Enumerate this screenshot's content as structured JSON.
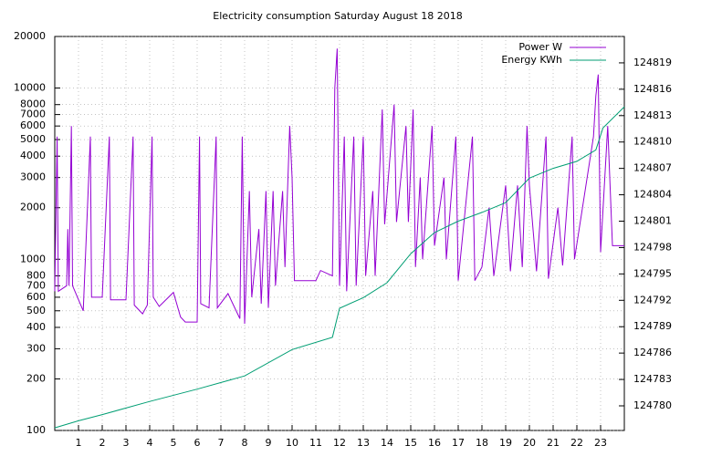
{
  "chart_data": {
    "type": "line",
    "title": "Electricity consumption Saturday August 18 2018",
    "xlim": [
      0,
      24
    ],
    "xticks": [
      1,
      2,
      3,
      4,
      5,
      6,
      7,
      8,
      9,
      10,
      11,
      12,
      13,
      14,
      15,
      16,
      17,
      18,
      19,
      20,
      21,
      22,
      23
    ],
    "ylim": [
      100,
      20000
    ],
    "yticks": [
      100,
      200,
      300,
      400,
      500,
      600,
      700,
      800,
      1000,
      2000,
      3000,
      4000,
      5000,
      6000,
      7000,
      8000,
      10000,
      20000
    ],
    "ylog": true,
    "y2lim": [
      124777.2,
      124822
    ],
    "y2ticks": [
      124780,
      124783,
      124786,
      124789,
      124792,
      124795,
      124798,
      124801,
      124804,
      124807,
      124810,
      124813,
      124816,
      124819
    ],
    "grid": true,
    "legend": "top-right",
    "series": [
      {
        "name": "Power W",
        "color": "#9400d3",
        "x": [
          0,
          0.1,
          0.15,
          0.5,
          0.55,
          0.6,
          0.7,
          0.75,
          1.2,
          1.5,
          1.55,
          2,
          2.3,
          2.35,
          3,
          3.3,
          3.35,
          3.7,
          3.9,
          4.1,
          4.15,
          4.4,
          5,
          5.3,
          5.5,
          6,
          6.1,
          6.15,
          6.5,
          6.8,
          6.85,
          7.3,
          7.8,
          7.9,
          8,
          8.1,
          8.2,
          8.3,
          8.6,
          8.7,
          8.9,
          9,
          9.2,
          9.3,
          9.6,
          9.7,
          9.9,
          10,
          10.1,
          10.5,
          11,
          11.2,
          11.7,
          11.8,
          11.9,
          12,
          12.2,
          12.3,
          12.6,
          12.7,
          13,
          13.1,
          13.4,
          13.5,
          13.8,
          13.9,
          14.3,
          14.4,
          14.8,
          14.9,
          15.1,
          15.2,
          15.4,
          15.5,
          15.9,
          16,
          16.4,
          16.5,
          16.9,
          17,
          17.6,
          17.7,
          18,
          18.3,
          18.5,
          19,
          19.2,
          19.5,
          19.7,
          19.9,
          20,
          20.3,
          20.7,
          20.8,
          21.2,
          21.4,
          21.8,
          21.9,
          22.7,
          22.8,
          22.9,
          23,
          23.3,
          23.5,
          24
        ],
        "values": [
          650,
          5200,
          650,
          700,
          1500,
          700,
          6000,
          700,
          500,
          5200,
          600,
          600,
          5200,
          580,
          580,
          5200,
          540,
          480,
          540,
          5200,
          600,
          530,
          640,
          460,
          430,
          430,
          5200,
          550,
          520,
          5200,
          520,
          630,
          450,
          5200,
          420,
          1000,
          2500,
          600,
          1500,
          550,
          2500,
          520,
          2500,
          700,
          2500,
          900,
          6000,
          3000,
          750,
          750,
          750,
          860,
          800,
          10000,
          17000,
          700,
          5200,
          650,
          5200,
          700,
          5200,
          800,
          2500,
          800,
          7500,
          1600,
          8000,
          1650,
          6000,
          1650,
          7500,
          900,
          3000,
          1000,
          6000,
          1200,
          3000,
          1000,
          5200,
          750,
          5200,
          750,
          900,
          2000,
          800,
          2700,
          850,
          2700,
          900,
          6000,
          2700,
          850,
          5200,
          770,
          2000,
          920,
          5200,
          1000,
          5200,
          9000,
          12000,
          1100,
          6000,
          1200,
          1200
        ]
      },
      {
        "name": "Energy KWh",
        "color": "#009e73",
        "axis": "y2",
        "x": [
          0,
          1,
          2,
          4,
          6,
          8,
          10,
          11.7,
          12,
          13,
          14,
          15,
          16,
          17,
          18,
          19,
          20,
          21,
          22,
          22.8,
          23.1,
          24
        ],
        "values": [
          124777.5,
          124778.3,
          124779,
          124780.5,
          124781.9,
          124783.4,
          124786.4,
          124787.8,
          124791.1,
          124792.3,
          124794,
          124797.3,
          124799.7,
          124801,
          124802,
          124803.1,
          124805.9,
          124807,
          124807.8,
          124809.1,
          124811.6,
          124814
        ]
      }
    ]
  }
}
